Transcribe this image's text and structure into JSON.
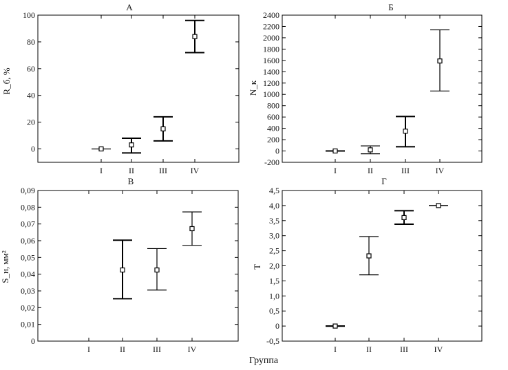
{
  "xlabel": "Группа",
  "chart_data": [
    {
      "type": "errorbar",
      "title": "А",
      "ylabel": "R_б, %",
      "categories": [
        "I",
        "II",
        "III",
        "IV"
      ],
      "ylim": [
        -10,
        100
      ],
      "yticks": [
        0,
        20,
        40,
        60,
        80,
        100
      ],
      "ytick_labels": [
        "0",
        "20",
        "40",
        "60",
        "80",
        "100"
      ],
      "points": [
        {
          "x": "I",
          "y": 0,
          "low": 0,
          "high": 0
        },
        {
          "x": "II",
          "y": 3,
          "low": -3,
          "high": 8
        },
        {
          "x": "III",
          "y": 15,
          "low": 6,
          "high": 24
        },
        {
          "x": "IV",
          "y": 84,
          "low": 72,
          "high": 96
        }
      ],
      "bar_weight": [
        "thin",
        "thick",
        "thick",
        "thick"
      ],
      "grid": false
    },
    {
      "type": "errorbar",
      "title": "Б",
      "ylabel": "N_к",
      "categories": [
        "I",
        "II",
        "III",
        "IV"
      ],
      "ylim": [
        -200,
        2400
      ],
      "yticks": [
        -200,
        0,
        200,
        400,
        600,
        800,
        1000,
        1200,
        1400,
        1600,
        1800,
        2000,
        2200,
        2400
      ],
      "ytick_labels": [
        "-200",
        "0",
        "200",
        "400",
        "600",
        "800",
        "1000",
        "1200",
        "1400",
        "1600",
        "1800",
        "2000",
        "2200",
        "2400"
      ],
      "points": [
        {
          "x": "I",
          "y": 0,
          "low": 0,
          "high": 0
        },
        {
          "x": "II",
          "y": 20,
          "low": -50,
          "high": 90
        },
        {
          "x": "III",
          "y": 350,
          "low": 75,
          "high": 610
        },
        {
          "x": "IV",
          "y": 1590,
          "low": 1060,
          "high": 2140
        }
      ],
      "bar_weight": [
        "thick",
        "thin",
        "thick",
        "thin"
      ],
      "grid": false
    },
    {
      "type": "errorbar",
      "title": "В",
      "ylabel": "S_н, мм²",
      "categories": [
        "I",
        "II",
        "III",
        "IV"
      ],
      "ylim": [
        0,
        0.09
      ],
      "yticks": [
        0,
        0.01,
        0.02,
        0.03,
        0.04,
        0.05,
        0.06,
        0.07,
        0.08,
        0.09
      ],
      "ytick_labels": [
        "0",
        "0,01",
        "0,02",
        "0,03",
        "0,04",
        "0,05",
        "0,06",
        "0,07",
        "0,08",
        "0,09"
      ],
      "points": [
        {
          "x": "II",
          "y": 0.0425,
          "low": 0.0253,
          "high": 0.0603
        },
        {
          "x": "III",
          "y": 0.0425,
          "low": 0.0305,
          "high": 0.0553
        },
        {
          "x": "IV",
          "y": 0.0672,
          "low": 0.0572,
          "high": 0.0772
        }
      ],
      "bar_weight": [
        "thin",
        "thick",
        "thin",
        "thin"
      ],
      "grid": false
    },
    {
      "type": "errorbar",
      "title": "Г",
      "ylabel": "Т",
      "categories": [
        "I",
        "II",
        "III",
        "IV"
      ],
      "ylim": [
        -0.5,
        4.5
      ],
      "yticks": [
        -0.5,
        0,
        0.5,
        1,
        1.5,
        2,
        2.5,
        3,
        3.5,
        4,
        4.5
      ],
      "ytick_labels": [
        "-0,5",
        "0",
        "0,5",
        "1,0",
        "1,5",
        "2,0",
        "2,5",
        "3,0",
        "3,5",
        "4,0",
        "4,5"
      ],
      "points": [
        {
          "x": "I",
          "y": 0,
          "low": 0,
          "high": 0
        },
        {
          "x": "II",
          "y": 2.33,
          "low": 1.7,
          "high": 2.97
        },
        {
          "x": "III",
          "y": 3.6,
          "low": 3.38,
          "high": 3.83
        },
        {
          "x": "IV",
          "y": 4,
          "low": 4,
          "high": 4
        }
      ],
      "bar_weight": [
        "thick",
        "thin",
        "thick",
        "thin"
      ],
      "grid": false
    }
  ]
}
